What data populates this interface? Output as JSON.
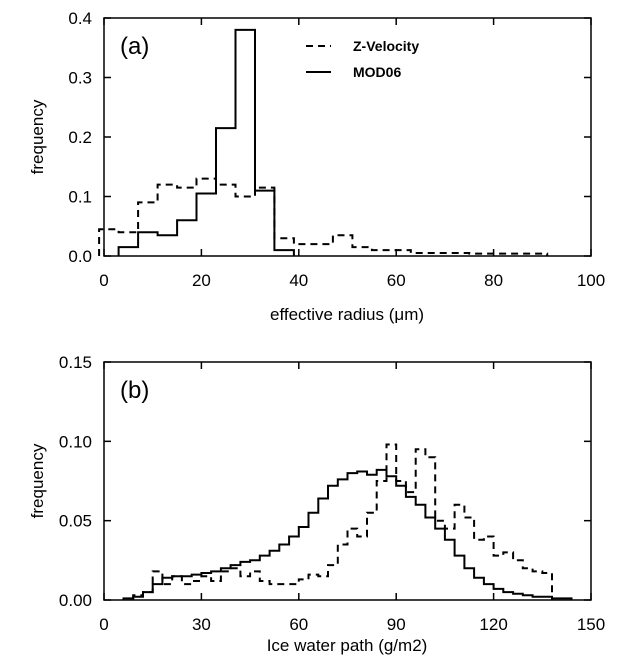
{
  "chart_data": [
    {
      "type": "line",
      "panel_label": "(a)",
      "xlabel": "effective radius (μm)",
      "ylabel": "frequency",
      "xlim": [
        0,
        100
      ],
      "ylim": [
        0,
        0.4
      ],
      "x_ticks": [
        "0",
        "20",
        "40",
        "60",
        "80",
        "100"
      ],
      "y_ticks": [
        "0.0",
        "0.1",
        "0.2",
        "0.3",
        "0.4"
      ],
      "grid": false,
      "legend_position": "top-right",
      "step": true,
      "bin_width": 4,
      "series": [
        {
          "name": "Z-Velocity",
          "style": "dashed",
          "bin_edges": [
            -1,
            3,
            7,
            11,
            15,
            19,
            23,
            27,
            31,
            35,
            39,
            43,
            47,
            51,
            55,
            59,
            63,
            67,
            71,
            75,
            79,
            83,
            87,
            91
          ],
          "values": [
            0.045,
            0.04,
            0.09,
            0.12,
            0.115,
            0.13,
            0.12,
            0.1,
            0.115,
            0.03,
            0.02,
            0.02,
            0.035,
            0.015,
            0.01,
            0.01,
            0.005,
            0.005,
            0.005,
            0.004,
            0.004,
            0.004,
            0.004
          ]
        },
        {
          "name": "MOD06",
          "style": "solid",
          "bin_edges": [
            3,
            7,
            11,
            15,
            19,
            23,
            27,
            31,
            35,
            39
          ],
          "values": [
            0.015,
            0.04,
            0.035,
            0.06,
            0.105,
            0.215,
            0.38,
            0.11,
            0.01
          ]
        }
      ]
    },
    {
      "type": "line",
      "panel_label": "(b)",
      "xlabel": "Ice water path (g/m2)",
      "ylabel": "frequency",
      "xlim": [
        0,
        150
      ],
      "ylim": [
        0,
        0.15
      ],
      "x_ticks": [
        "0",
        "30",
        "60",
        "90",
        "120",
        "150"
      ],
      "y_ticks": [
        "0.00",
        "0.05",
        "0.10",
        "0.15"
      ],
      "grid": false,
      "step": true,
      "bin_width": 3,
      "series": [
        {
          "name": "Z-Velocity",
          "style": "dashed",
          "bin_edges": [
            9,
            12,
            15,
            18,
            21,
            24,
            27,
            30,
            33,
            36,
            39,
            42,
            45,
            48,
            51,
            54,
            57,
            60,
            63,
            66,
            69,
            72,
            75,
            78,
            81,
            84,
            87,
            90,
            93,
            96,
            99,
            102,
            105,
            108,
            111,
            114,
            117,
            120,
            123,
            126,
            129,
            132,
            135,
            138
          ],
          "values": [
            0.003,
            0.005,
            0.018,
            0.01,
            0.015,
            0.01,
            0.012,
            0.015,
            0.012,
            0.018,
            0.02,
            0.015,
            0.018,
            0.012,
            0.01,
            0.01,
            0.01,
            0.013,
            0.016,
            0.015,
            0.022,
            0.035,
            0.045,
            0.04,
            0.055,
            0.075,
            0.098,
            0.075,
            0.068,
            0.095,
            0.09,
            0.05,
            0.045,
            0.06,
            0.052,
            0.038,
            0.04,
            0.028,
            0.03,
            0.025,
            0.02,
            0.018,
            0.017
          ]
        },
        {
          "name": "MOD06",
          "style": "solid",
          "bin_edges": [
            6,
            9,
            12,
            15,
            18,
            21,
            24,
            27,
            30,
            33,
            36,
            39,
            42,
            45,
            48,
            51,
            54,
            57,
            60,
            63,
            66,
            69,
            72,
            75,
            78,
            81,
            84,
            87,
            90,
            93,
            96,
            99,
            102,
            105,
            108,
            111,
            114,
            117,
            120,
            123,
            126,
            129,
            132,
            135,
            138,
            141,
            144
          ],
          "values": [
            0.001,
            0.002,
            0.005,
            0.01,
            0.014,
            0.015,
            0.015,
            0.016,
            0.017,
            0.018,
            0.02,
            0.022,
            0.024,
            0.025,
            0.028,
            0.031,
            0.035,
            0.04,
            0.046,
            0.055,
            0.064,
            0.072,
            0.076,
            0.08,
            0.081,
            0.079,
            0.082,
            0.078,
            0.072,
            0.065,
            0.06,
            0.052,
            0.045,
            0.038,
            0.028,
            0.02,
            0.014,
            0.01,
            0.007,
            0.005,
            0.004,
            0.003,
            0.002,
            0.002,
            0.001,
            0.001
          ]
        }
      ]
    }
  ]
}
